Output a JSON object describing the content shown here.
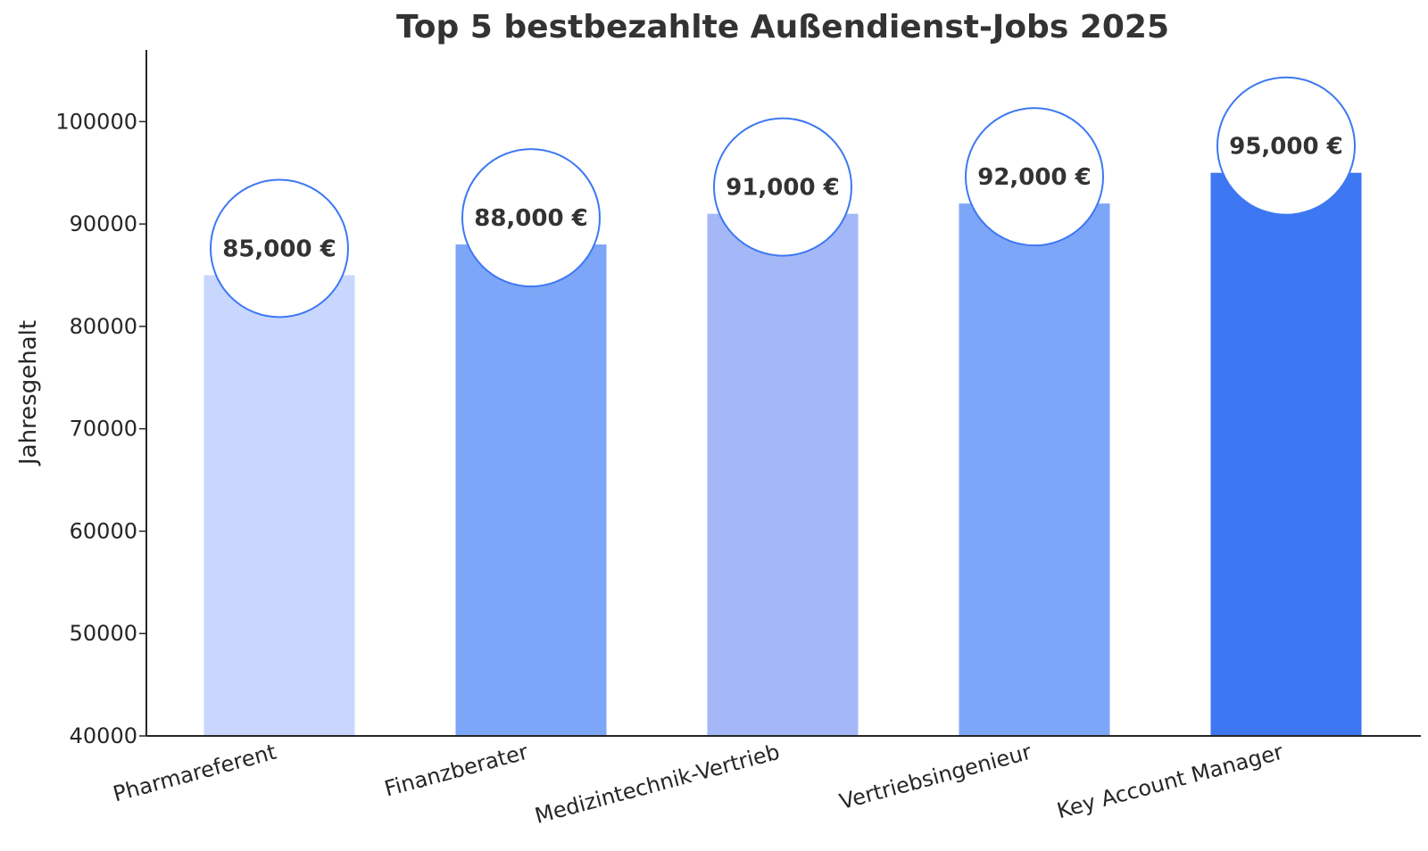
{
  "chart_data": {
    "type": "bar",
    "title": "Top 5 bestbezahlte Außendienst-Jobs 2025",
    "xlabel": "",
    "ylabel": "Jahresgehalt",
    "categories": [
      "Pharmareferent",
      "Finanzberater",
      "Medizintechnik-Vertrieb",
      "Vertriebsingenieur",
      "Key Account Manager"
    ],
    "values": [
      85000,
      88000,
      91000,
      92000,
      95000
    ],
    "data_labels": [
      "85,000 €",
      "88,000 €",
      "91,000 €",
      "92,000 €",
      "95,000 €"
    ],
    "ylim": [
      40000,
      107000
    ],
    "yticks": [
      40000,
      50000,
      60000,
      70000,
      80000,
      90000,
      100000
    ],
    "ytick_labels": [
      "40000",
      "50000",
      "60000",
      "70000",
      "80000",
      "90000",
      "100000"
    ],
    "bar_colors": [
      "#c9d7ff",
      "#7ea6f8",
      "#a4b8f7",
      "#7ea6f8",
      "#3d78f2"
    ],
    "label_circle_border": "#3d78f2",
    "grid": false,
    "legend": "none"
  }
}
